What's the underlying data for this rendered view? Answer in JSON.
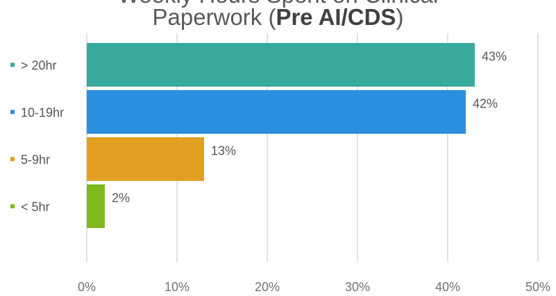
{
  "chart_data": {
    "type": "bar",
    "orientation": "horizontal",
    "title_parts": {
      "cut_off_line": "Weekly Hours Spent on Clinical",
      "regular": "Paperwork (",
      "bold": "Pre AI/CDS",
      "closing": ")"
    },
    "categories": [
      "> 20hr",
      "10-19hr",
      "5-9hr",
      "< 5hr"
    ],
    "values": [
      43,
      42,
      13,
      2
    ],
    "value_labels": [
      "43%",
      "42%",
      "13%",
      "2%"
    ],
    "colors": [
      "#38aa9b",
      "#2b8fe0",
      "#e2a022",
      "#80b81e"
    ],
    "xlim": [
      0,
      50
    ],
    "x_ticks": [
      0,
      10,
      20,
      30,
      40,
      50
    ],
    "x_tick_labels": [
      "0%",
      "10%",
      "20%",
      "30%",
      "40%",
      "50%"
    ],
    "grid": "vertical",
    "legend": "none"
  }
}
